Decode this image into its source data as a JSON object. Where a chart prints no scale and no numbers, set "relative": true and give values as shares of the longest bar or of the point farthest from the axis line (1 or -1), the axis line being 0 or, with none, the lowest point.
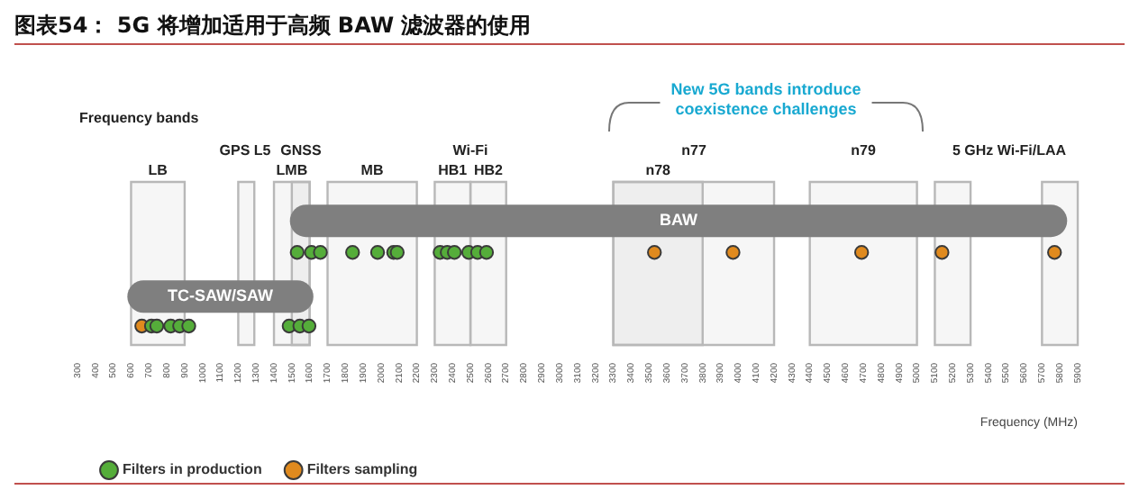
{
  "chart_data": {
    "type": "scatter",
    "title": "图表54：  5G 将增加适用于高频 BAW 滤波器的使用",
    "xlabel": "Frequency (MHz)",
    "relative": true,
    "annotations": [
      "Frequency bands",
      "New 5G bands introduce coexistence challenges",
      "GPS L5",
      "GNSS",
      "Wi-Fi",
      "n77",
      "n79",
      "5 GHz Wi-Fi/LAA"
    ],
    "bands": [
      {
        "axis": "x",
        "from": 600,
        "to": 900,
        "label": "LB",
        "color": "#b8b8b8"
      },
      {
        "axis": "x",
        "from": 1200,
        "to": 1290,
        "color": "#b8b8b8"
      },
      {
        "axis": "x",
        "from": 1400,
        "to": 1600,
        "label": "LMB",
        "color": "#b8b8b8"
      },
      {
        "axis": "x",
        "from": 1500,
        "to": 1600,
        "color": "#b8b8b8"
      },
      {
        "axis": "x",
        "from": 1700,
        "to": 2200,
        "label": "MB",
        "color": "#b8b8b8"
      },
      {
        "axis": "x",
        "from": 2300,
        "to": 2500,
        "label": "HB1",
        "color": "#b8b8b8"
      },
      {
        "axis": "x",
        "from": 2500,
        "to": 2700,
        "label": "HB2",
        "color": "#b8b8b8"
      },
      {
        "axis": "x",
        "from": 3300,
        "to": 3800,
        "label": "n78",
        "color": "#b8b8b8"
      },
      {
        "axis": "x",
        "from": 3300,
        "to": 4200,
        "color": "#b8b8b8"
      },
      {
        "axis": "x",
        "from": 4400,
        "to": 5000,
        "color": "#b8b8b8"
      },
      {
        "axis": "x",
        "from": 5100,
        "to": 5300,
        "color": "#b8b8b8"
      },
      {
        "axis": "x",
        "from": 5700,
        "to": 5900,
        "color": "#b8b8b8"
      }
    ],
    "xlim": [
      300,
      5900
    ],
    "xticks": [
      300,
      400,
      500,
      600,
      700,
      800,
      900,
      1000,
      1100,
      1200,
      1300,
      1400,
      1500,
      1600,
      1700,
      1800,
      1900,
      2000,
      2100,
      2200,
      2300,
      2400,
      2500,
      2600,
      2700,
      2800,
      2900,
      3000,
      3100,
      3200,
      3300,
      3400,
      3500,
      3600,
      3700,
      3800,
      3900,
      4000,
      4100,
      4200,
      4300,
      4400,
      4500,
      4600,
      4700,
      4800,
      4900,
      5000,
      5100,
      5200,
      5300,
      5400,
      5500,
      5600,
      5700,
      5800,
      5900
    ],
    "tick_labels": "x",
    "legend": "bottom left",
    "marker": "circle",
    "series": [
      {
        "type": "line",
        "name": "BAW",
        "color": "#7f7f7f",
        "marker": "none",
        "x": [
          1580,
          5750
        ],
        "values": [
          1,
          1
        ]
      },
      {
        "type": "line",
        "name": "TC-SAW/SAW",
        "color": "#7f7f7f",
        "marker": "none",
        "x": [
          670,
          1530
        ],
        "values": [
          0.28,
          0.28
        ]
      },
      {
        "name": "Filters in production",
        "color": "#55ad3a",
        "x": [
          1530,
          1610,
          1660,
          1840,
          1980,
          2070,
          2090,
          2330,
          2370,
          2410,
          2490,
          2540,
          2590,
          714,
          744,
          822,
          872,
          923,
          1485,
          1545,
          1596
        ],
        "values": [
          0.7,
          0.7,
          0.7,
          0.7,
          0.7,
          0.7,
          0.7,
          0.7,
          0.7,
          0.7,
          0.7,
          0.7,
          0.7,
          0,
          0,
          0,
          0,
          0,
          0,
          0,
          0
        ]
      },
      {
        "name": "Filters sampling",
        "color": "#e08a1e",
        "x": [
          3530,
          3970,
          4690,
          5140,
          5770,
          660
        ],
        "values": [
          0.7,
          0.7,
          0.7,
          0.7,
          0.7,
          0
        ]
      }
    ]
  }
}
